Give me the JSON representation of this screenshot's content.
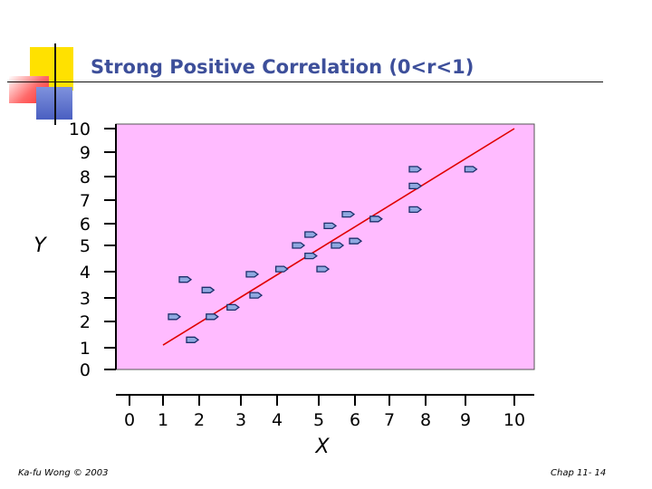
{
  "slide": {
    "title": "Strong Positive Correlation (0<r<1)",
    "footer_left": "Ka-fu Wong © 2003",
    "footer_right": "Chap 11- 14"
  },
  "colors": {
    "title": "#3d4f9a",
    "plot_background": "#ffbbff",
    "regression_line": "#e00000",
    "marker_fill": "#8fa8e0",
    "marker_stroke": "#1c2f6b",
    "deco_yellow": "#ffe100",
    "deco_red": "#ff4040",
    "deco_blue": "#4a5fc1"
  },
  "chart_data": {
    "type": "scatter",
    "title": "Strong Positive Correlation (0<r<1)",
    "xlabel": "X",
    "ylabel": "Y",
    "x_ticks": [
      0,
      1,
      2,
      3,
      4,
      5,
      6,
      7,
      8,
      9,
      10
    ],
    "y_ticks": [
      0,
      1,
      2,
      3,
      4,
      5,
      6,
      7,
      8,
      9,
      10
    ],
    "xlim": [
      0,
      10
    ],
    "ylim": [
      0,
      10
    ],
    "grid": false,
    "points": [
      {
        "x": 1.3,
        "y": 2.2
      },
      {
        "x": 1.6,
        "y": 3.7
      },
      {
        "x": 1.8,
        "y": 1.3
      },
      {
        "x": 2.2,
        "y": 3.3
      },
      {
        "x": 2.3,
        "y": 2.2
      },
      {
        "x": 2.8,
        "y": 2.6
      },
      {
        "x": 3.3,
        "y": 3.9
      },
      {
        "x": 3.4,
        "y": 3.1
      },
      {
        "x": 4.1,
        "y": 4.1
      },
      {
        "x": 4.5,
        "y": 5.0
      },
      {
        "x": 4.8,
        "y": 4.6
      },
      {
        "x": 4.8,
        "y": 5.5
      },
      {
        "x": 5.1,
        "y": 4.1
      },
      {
        "x": 5.3,
        "y": 5.9
      },
      {
        "x": 5.5,
        "y": 5.0
      },
      {
        "x": 5.8,
        "y": 6.4
      },
      {
        "x": 6.0,
        "y": 5.2
      },
      {
        "x": 6.6,
        "y": 6.2
      },
      {
        "x": 7.7,
        "y": 8.3
      },
      {
        "x": 7.7,
        "y": 7.6
      },
      {
        "x": 7.7,
        "y": 6.6
      },
      {
        "x": 9.1,
        "y": 8.3
      }
    ],
    "trend_line": {
      "x": [
        1.0,
        10.0
      ],
      "y": [
        1.1,
        10.1
      ]
    }
  }
}
